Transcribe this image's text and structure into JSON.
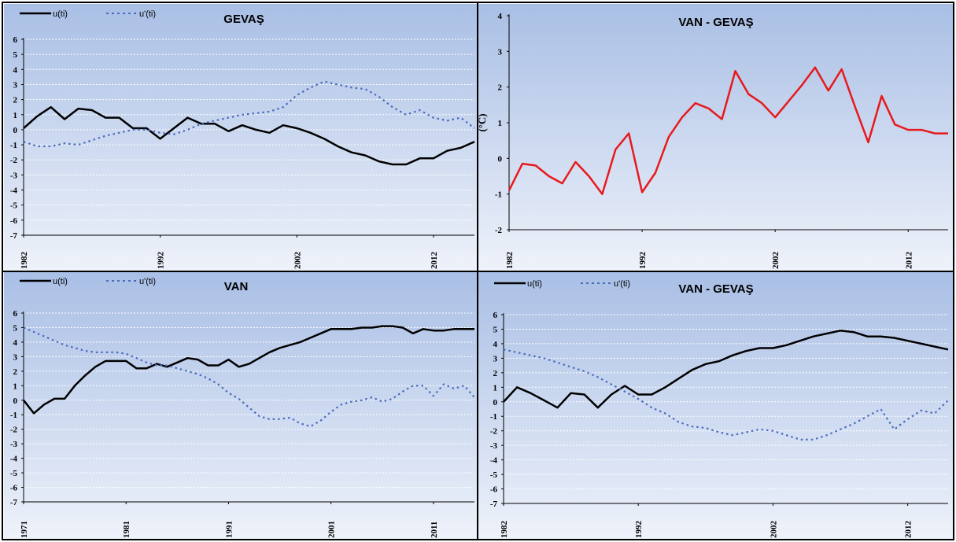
{
  "chart_data": [
    {
      "type": "line",
      "title": "GEVAŞ",
      "legend_placement": "top-left",
      "grid": true,
      "ylabel": "",
      "ylim": [
        -7,
        6
      ],
      "yticks": [
        "6",
        "5",
        "4",
        "3",
        "2",
        "1",
        "0",
        "-1",
        "-2",
        "-3",
        "-4",
        "-5",
        "-6",
        "-7"
      ],
      "xlim": [
        1982,
        2015
      ],
      "xticks": [
        "1982",
        "1992",
        "2002",
        "2012"
      ],
      "series": [
        {
          "name": "u(ti)",
          "style": "solid",
          "color": "#000000",
          "x": [
            1982,
            1983,
            1984,
            1985,
            1986,
            1987,
            1988,
            1989,
            1990,
            1991,
            1992,
            1993,
            1994,
            1995,
            1996,
            1997,
            1998,
            1999,
            2000,
            2001,
            2002,
            2003,
            2004,
            2005,
            2006,
            2007,
            2008,
            2009,
            2010,
            2011,
            2012,
            2013,
            2014,
            2015
          ],
          "values": [
            0.1,
            0.9,
            1.5,
            0.7,
            1.4,
            1.3,
            0.8,
            0.8,
            0.1,
            0.1,
            -0.6,
            0.1,
            0.8,
            0.4,
            0.4,
            -0.1,
            0.3,
            0.0,
            -0.2,
            0.3,
            0.1,
            -0.2,
            -0.6,
            -1.1,
            -1.5,
            -1.7,
            -2.1,
            -2.3,
            -2.3,
            -1.9,
            -1.9,
            -1.4,
            -1.2,
            -0.8
          ]
        },
        {
          "name": "u'(ti)",
          "style": "dotted",
          "color": "#4a6bbd",
          "x": [
            1982,
            1983,
            1984,
            1985,
            1986,
            1987,
            1988,
            1989,
            1990,
            1991,
            1992,
            1993,
            1994,
            1995,
            1996,
            1997,
            1998,
            1999,
            2000,
            2001,
            2002,
            2003,
            2004,
            2005,
            2006,
            2007,
            2008,
            2009,
            2010,
            2011,
            2012,
            2013,
            2014,
            2015
          ],
          "values": [
            -0.8,
            -1.1,
            -1.1,
            -0.9,
            -1.0,
            -0.7,
            -0.4,
            -0.2,
            0.0,
            0.0,
            -0.2,
            -0.3,
            0.0,
            0.4,
            0.6,
            0.8,
            1.0,
            1.1,
            1.2,
            1.5,
            2.3,
            2.8,
            3.2,
            3.0,
            2.8,
            2.7,
            2.2,
            1.5,
            1.0,
            1.3,
            0.8,
            0.6,
            0.8,
            0.1
          ]
        }
      ]
    },
    {
      "type": "line",
      "title": "VAN - GEVAŞ",
      "legend_placement": "none",
      "grid": false,
      "ylabel": "(°C)",
      "ylim": [
        -2,
        4
      ],
      "yticks": [
        "4",
        "3",
        "2",
        "1",
        "0",
        "-1",
        "-2"
      ],
      "xlim": [
        1982,
        2015
      ],
      "xticks": [
        "1982",
        "1992",
        "2002",
        "2012"
      ],
      "series": [
        {
          "name": "",
          "style": "solid",
          "color": "#e8191c",
          "x": [
            1982,
            1983,
            1984,
            1985,
            1986,
            1987,
            1988,
            1989,
            1990,
            1991,
            1992,
            1993,
            1994,
            1995,
            1996,
            1997,
            1998,
            1999,
            2000,
            2001,
            2002,
            2003,
            2004,
            2005,
            2006,
            2007,
            2008,
            2009,
            2010,
            2011,
            2012,
            2013,
            2014,
            2015
          ],
          "values": [
            -0.9,
            -0.15,
            -0.2,
            -0.5,
            -0.7,
            -0.1,
            -0.5,
            -1.0,
            0.25,
            0.7,
            -0.95,
            -0.4,
            0.6,
            1.15,
            1.55,
            1.4,
            1.1,
            2.45,
            1.8,
            1.55,
            1.15,
            1.6,
            2.05,
            2.55,
            1.9,
            2.5,
            1.45,
            0.45,
            1.75,
            0.95,
            0.8,
            0.8,
            0.7,
            0.7
          ]
        }
      ]
    },
    {
      "type": "line",
      "title": "VAN",
      "legend_placement": "top-left",
      "grid": true,
      "ylabel": "",
      "ylim": [
        -7,
        6
      ],
      "yticks": [
        "6",
        "5",
        "4",
        "3",
        "2",
        "1",
        "0",
        "-1",
        "-2",
        "-3",
        "-4",
        "-5",
        "-6",
        "-7"
      ],
      "xlim": [
        1971,
        2015
      ],
      "xticks": [
        "1971",
        "1981",
        "1991",
        "2001",
        "2011"
      ],
      "series": [
        {
          "name": "u(ti)",
          "style": "solid",
          "color": "#000000",
          "x": [
            1971,
            1972,
            1973,
            1974,
            1975,
            1976,
            1977,
            1978,
            1979,
            1980,
            1981,
            1982,
            1983,
            1984,
            1985,
            1986,
            1987,
            1988,
            1989,
            1990,
            1991,
            1992,
            1993,
            1994,
            1995,
            1996,
            1997,
            1998,
            1999,
            2000,
            2001,
            2002,
            2003,
            2004,
            2005,
            2006,
            2007,
            2008,
            2009,
            2010,
            2011,
            2012,
            2013,
            2014,
            2015
          ],
          "values": [
            0.0,
            -0.9,
            -0.3,
            0.1,
            0.1,
            1.0,
            1.7,
            2.3,
            2.7,
            2.7,
            2.7,
            2.2,
            2.2,
            2.5,
            2.3,
            2.6,
            2.9,
            2.8,
            2.4,
            2.4,
            2.8,
            2.3,
            2.5,
            2.9,
            3.3,
            3.6,
            3.8,
            4.0,
            4.3,
            4.6,
            4.9,
            4.9,
            4.9,
            5.0,
            5.0,
            5.1,
            5.1,
            5.0,
            4.6,
            4.9,
            4.8,
            4.8,
            4.9,
            4.9,
            4.9
          ]
        },
        {
          "name": "u'(ti)",
          "style": "dotted",
          "color": "#4a6bbd",
          "x": [
            1971,
            1972,
            1973,
            1974,
            1975,
            1976,
            1977,
            1978,
            1979,
            1980,
            1981,
            1982,
            1983,
            1984,
            1985,
            1986,
            1987,
            1988,
            1989,
            1990,
            1991,
            1992,
            1993,
            1994,
            1995,
            1996,
            1997,
            1998,
            1999,
            2000,
            2001,
            2002,
            2003,
            2004,
            2005,
            2006,
            2007,
            2008,
            2009,
            2010,
            2011,
            2012,
            2013,
            2014,
            2015
          ],
          "values": [
            5.0,
            4.7,
            4.4,
            4.1,
            3.8,
            3.6,
            3.4,
            3.3,
            3.3,
            3.3,
            3.2,
            2.9,
            2.6,
            2.4,
            2.4,
            2.2,
            2.0,
            1.8,
            1.5,
            1.1,
            0.5,
            0.1,
            -0.5,
            -1.1,
            -1.3,
            -1.3,
            -1.2,
            -1.6,
            -1.8,
            -1.4,
            -0.8,
            -0.3,
            -0.1,
            0.0,
            0.2,
            -0.1,
            0.1,
            0.6,
            1.0,
            1.0,
            0.3,
            1.1,
            0.8,
            1.0,
            0.2
          ]
        }
      ]
    },
    {
      "type": "line",
      "title": "VAN - GEVAŞ",
      "legend_placement": "top-left",
      "grid": true,
      "ylabel": "",
      "ylim": [
        -7,
        6
      ],
      "yticks": [
        "6",
        "5",
        "4",
        "3",
        "2",
        "1",
        "0",
        "-1",
        "-2",
        "-3",
        "-4",
        "-5",
        "-6",
        "-7"
      ],
      "xlim": [
        1982,
        2015
      ],
      "xticks": [
        "1982",
        "1992",
        "2002",
        "2012"
      ],
      "series": [
        {
          "name": "u(ti)",
          "style": "solid",
          "color": "#000000",
          "x": [
            1982,
            1983,
            1984,
            1985,
            1986,
            1987,
            1988,
            1989,
            1990,
            1991,
            1992,
            1993,
            1994,
            1995,
            1996,
            1997,
            1998,
            1999,
            2000,
            2001,
            2002,
            2003,
            2004,
            2005,
            2006,
            2007,
            2008,
            2009,
            2010,
            2011,
            2012,
            2013,
            2014,
            2015
          ],
          "values": [
            0.0,
            1.0,
            0.6,
            0.1,
            -0.4,
            0.6,
            0.5,
            -0.4,
            0.5,
            1.1,
            0.5,
            0.5,
            1.0,
            1.6,
            2.2,
            2.6,
            2.8,
            3.2,
            3.5,
            3.7,
            3.7,
            3.9,
            4.2,
            4.5,
            4.7,
            4.9,
            4.8,
            4.5,
            4.5,
            4.4,
            4.2,
            4.0,
            3.8,
            3.6
          ]
        },
        {
          "name": "u'(ti)",
          "style": "dotted",
          "color": "#4a6bbd",
          "x": [
            1982,
            1983,
            1984,
            1985,
            1986,
            1987,
            1988,
            1989,
            1990,
            1991,
            1992,
            1993,
            1994,
            1995,
            1996,
            1997,
            1998,
            1999,
            2000,
            2001,
            2002,
            2003,
            2004,
            2005,
            2006,
            2007,
            2008,
            2009,
            2010,
            2011,
            2012,
            2013,
            2014,
            2015
          ],
          "values": [
            3.6,
            3.4,
            3.2,
            3.0,
            2.7,
            2.4,
            2.1,
            1.7,
            1.2,
            0.7,
            0.2,
            -0.4,
            -0.8,
            -1.4,
            -1.7,
            -1.8,
            -2.1,
            -2.3,
            -2.1,
            -1.9,
            -2.0,
            -2.3,
            -2.6,
            -2.6,
            -2.3,
            -1.9,
            -1.5,
            -1.0,
            -0.5,
            -1.9,
            -1.2,
            -0.6,
            -0.8,
            0.1
          ]
        }
      ]
    }
  ]
}
